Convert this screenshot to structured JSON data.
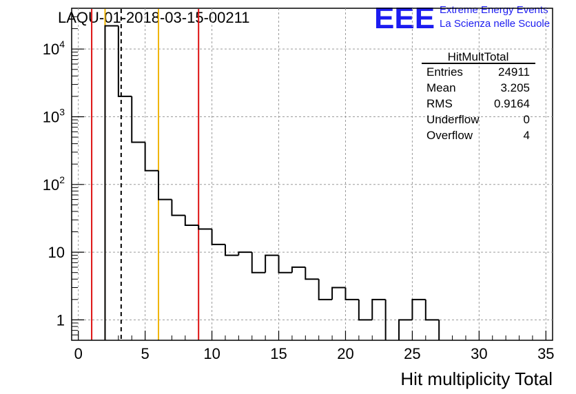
{
  "chart_data": {
    "type": "bar",
    "style": "step-histogram",
    "title": "LAQU-01-2018-03-15-00211",
    "xlabel": "Hit multiplicity Total",
    "ylabel": "",
    "xlim": [
      -0.5,
      35.5
    ],
    "ylim": [
      0.5,
      40000
    ],
    "yscale": "log",
    "grid": true,
    "bin_width": 1,
    "bins": [
      {
        "x": 2.5,
        "count": 22000
      },
      {
        "x": 3.5,
        "count": 2000
      },
      {
        "x": 4.5,
        "count": 420
      },
      {
        "x": 5.5,
        "count": 160
      },
      {
        "x": 6.5,
        "count": 60
      },
      {
        "x": 7.5,
        "count": 35
      },
      {
        "x": 8.5,
        "count": 25
      },
      {
        "x": 9.5,
        "count": 22
      },
      {
        "x": 10.5,
        "count": 13
      },
      {
        "x": 11.5,
        "count": 9
      },
      {
        "x": 12.5,
        "count": 10
      },
      {
        "x": 13.5,
        "count": 5
      },
      {
        "x": 14.5,
        "count": 9
      },
      {
        "x": 15.5,
        "count": 5
      },
      {
        "x": 16.5,
        "count": 6
      },
      {
        "x": 17.5,
        "count": 4
      },
      {
        "x": 18.5,
        "count": 2
      },
      {
        "x": 19.5,
        "count": 3
      },
      {
        "x": 20.5,
        "count": 2
      },
      {
        "x": 21.5,
        "count": 1
      },
      {
        "x": 22.5,
        "count": 2
      },
      {
        "x": 23.5,
        "count": 0
      },
      {
        "x": 24.5,
        "count": 1
      },
      {
        "x": 25.5,
        "count": 2
      },
      {
        "x": 26.5,
        "count": 1
      }
    ],
    "x_ticks": [
      "0",
      "5",
      "10",
      "15",
      "20",
      "25",
      "30",
      "35"
    ],
    "x_tick_values": [
      0,
      5,
      10,
      15,
      20,
      25,
      30,
      35
    ],
    "y_ticks": [
      {
        "value": 1,
        "base": "1",
        "exp": ""
      },
      {
        "value": 10,
        "base": "10",
        "exp": ""
      },
      {
        "value": 100,
        "base": "10",
        "exp": "2"
      },
      {
        "value": 1000,
        "base": "10",
        "exp": "3"
      },
      {
        "value": 10000,
        "base": "10",
        "exp": "4"
      }
    ],
    "reference_lines": [
      {
        "x": 1.0,
        "color": "#dd1111",
        "style": "solid"
      },
      {
        "x": 2.0,
        "color": "#f0b400",
        "style": "solid"
      },
      {
        "x": 3.205,
        "color": "#000000",
        "style": "dashed"
      },
      {
        "x": 6.0,
        "color": "#f0b400",
        "style": "solid"
      },
      {
        "x": 9.0,
        "color": "#dd1111",
        "style": "solid"
      }
    ],
    "stats_box": {
      "title": "HitMultTotal",
      "rows": [
        {
          "label": "Entries",
          "value": "24911"
        },
        {
          "label": "Mean",
          "value": "3.205"
        },
        {
          "label": "RMS",
          "value": "0.9164"
        },
        {
          "label": "Underflow",
          "value": "0"
        },
        {
          "label": "Overflow",
          "value": "4"
        }
      ]
    }
  },
  "logo": {
    "text": "EEE",
    "line1": "Extreme Energy Events",
    "line2": "La Scienza nelle Scuole",
    "color": "#1c1cf0"
  }
}
